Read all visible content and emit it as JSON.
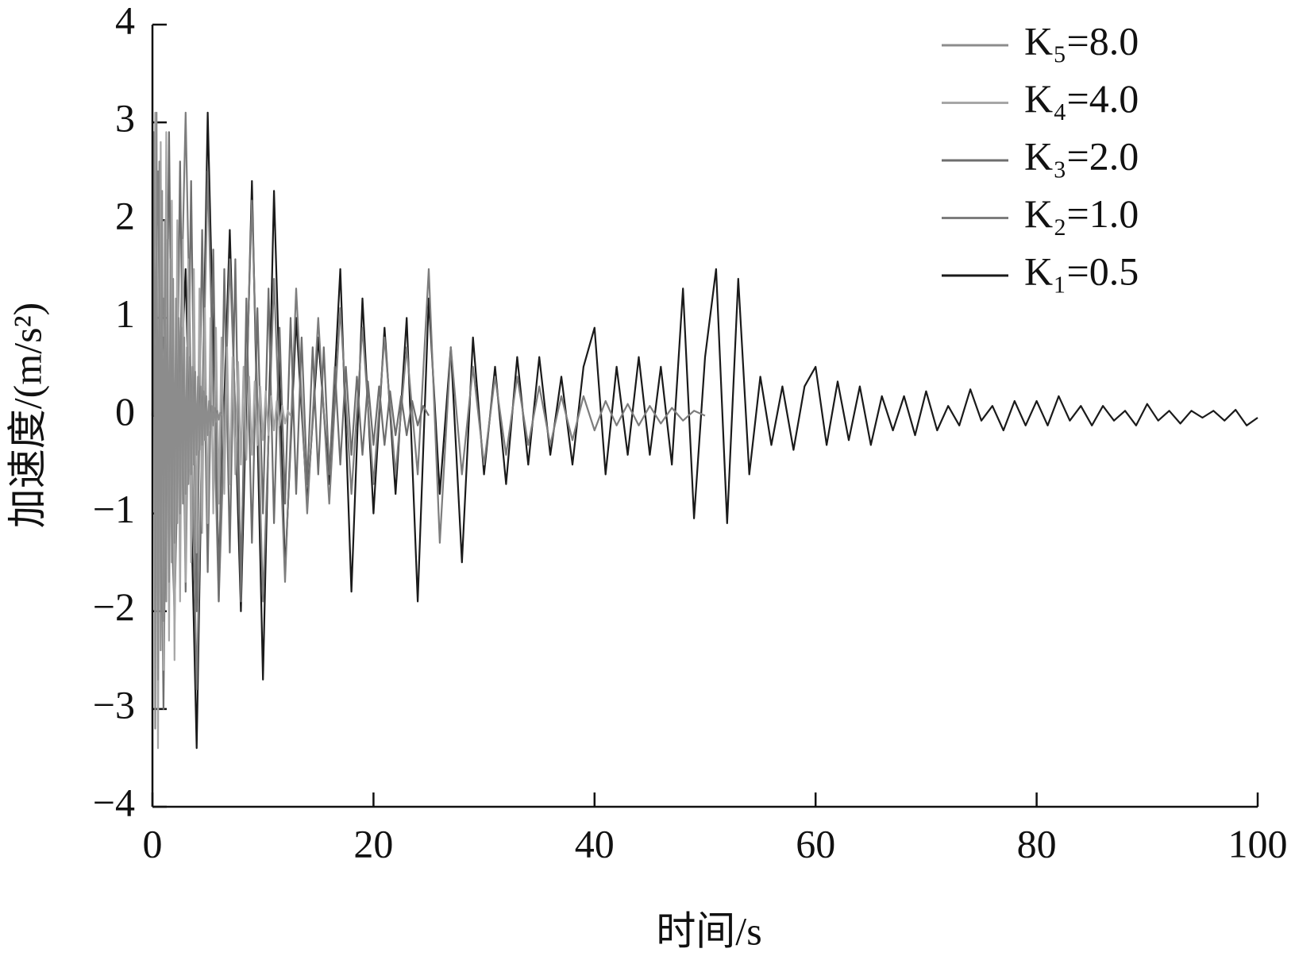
{
  "chart_data": {
    "type": "line",
    "xlabel": "时间/s",
    "ylabel": "加速度/(m/s²)",
    "xlim": [
      0,
      100
    ],
    "xticks": [
      0,
      20,
      40,
      60,
      80,
      100
    ],
    "ylim": [
      -4,
      4
    ],
    "yticks": [
      {
        "value": -4,
        "label": "−4"
      },
      {
        "value": -3,
        "label": "−3"
      },
      {
        "value": -2,
        "label": "−2"
      },
      {
        "value": -1,
        "label": "−1"
      },
      0,
      1,
      2,
      3,
      4
    ],
    "legend": "upper right",
    "series": [
      {
        "name": "K₅=8.0",
        "color": "#8c8c8c",
        "x": [
          0,
          0.125,
          0.25,
          0.375,
          0.5,
          0.625,
          0.75,
          0.875,
          1,
          1.125,
          1.25,
          1.375,
          1.5,
          1.625,
          1.75,
          1.875,
          2,
          2.125,
          2.25,
          2.375,
          2.5,
          2.625,
          2.75,
          2.875,
          3,
          3.125,
          3.25,
          3.375,
          3.5,
          3.625,
          3.75,
          3.875,
          4,
          4.125,
          4.25,
          4.375,
          4.5,
          4.625,
          4.75,
          4.875,
          5,
          5.125,
          5.25,
          5.375,
          5.5,
          5.625,
          5.75,
          5.875,
          6,
          6.125,
          6.25
        ],
        "values": [
          0,
          2.9,
          -3.2,
          3.1,
          -2.7,
          2.6,
          -2.4,
          2.3,
          -2.1,
          2.0,
          -1.9,
          1.8,
          -1.7,
          1.6,
          -1.5,
          1.4,
          -1.3,
          1.2,
          -1.1,
          1.0,
          -1.0,
          0.9,
          -0.9,
          0.8,
          -0.8,
          0.7,
          -0.7,
          0.6,
          -0.6,
          0.5,
          -0.5,
          0.45,
          -0.4,
          0.4,
          -0.35,
          0.3,
          -0.3,
          0.25,
          -0.25,
          0.2,
          -0.2,
          0.15,
          -0.15,
          0.1,
          -0.1,
          0.08,
          -0.06,
          0.05,
          -0.04,
          0.03,
          0
        ]
      },
      {
        "name": "K₄=4.0",
        "color": "#a6a6a6",
        "x": [
          0,
          0.25,
          0.5,
          0.75,
          1,
          1.25,
          1.5,
          1.75,
          2,
          2.25,
          2.5,
          2.75,
          3,
          3.25,
          3.5,
          3.75,
          4,
          4.25,
          4.5,
          4.75,
          5,
          5.25,
          5.5,
          5.75,
          6,
          6.25,
          6.5,
          6.75,
          7,
          7.25,
          7.5,
          7.75,
          8,
          8.25,
          8.5,
          8.75,
          9,
          9.25,
          9.5,
          9.75,
          10,
          10.25,
          10.5,
          10.75,
          11,
          11.25,
          11.5,
          11.75,
          12,
          12.25,
          12.5
        ],
        "values": [
          0,
          3.1,
          -3.4,
          2.8,
          -2.6,
          2.9,
          -2.3,
          2.2,
          -2.5,
          2.0,
          -1.9,
          1.8,
          -1.7,
          1.6,
          -1.5,
          1.5,
          -1.4,
          1.3,
          -1.2,
          1.1,
          -1.1,
          1.0,
          -1.0,
          0.9,
          -0.9,
          0.8,
          -0.8,
          0.7,
          -0.7,
          0.6,
          -0.6,
          0.55,
          -0.5,
          0.5,
          -0.45,
          0.4,
          -0.4,
          0.35,
          -0.3,
          0.3,
          -0.25,
          0.25,
          -0.2,
          0.2,
          -0.15,
          0.15,
          -0.1,
          0.1,
          -0.08,
          0.05,
          0
        ]
      },
      {
        "name": "K₃=2.0",
        "color": "#6e6e6e",
        "x": [
          0,
          0.5,
          1,
          1.5,
          2,
          2.5,
          3,
          3.5,
          4,
          4.5,
          5,
          5.5,
          6,
          6.5,
          7,
          7.5,
          8,
          8.5,
          9,
          9.5,
          10,
          10.5,
          11,
          11.5,
          12,
          12.5,
          13,
          13.5,
          14,
          14.5,
          15,
          15.5,
          16,
          16.5,
          17,
          17.5,
          18,
          18.5,
          19,
          19.5,
          20,
          20.5,
          21,
          21.5,
          22,
          22.5,
          23,
          23.5,
          24,
          24.5,
          25
        ],
        "values": [
          0,
          2.5,
          -3.0,
          2.9,
          -2.2,
          2.6,
          -1.8,
          2.4,
          -2.0,
          1.9,
          -1.6,
          1.7,
          -1.9,
          1.5,
          -1.4,
          1.6,
          -1.9,
          1.2,
          -1.3,
          1.1,
          -1.0,
          1.3,
          -1.1,
          0.9,
          -0.9,
          1.0,
          -0.8,
          0.8,
          -0.7,
          0.7,
          -0.6,
          0.7,
          -0.6,
          0.5,
          -0.5,
          0.5,
          -0.4,
          0.4,
          -0.4,
          0.35,
          -0.3,
          0.3,
          -0.3,
          0.25,
          -0.2,
          0.2,
          -0.2,
          0.15,
          -0.1,
          0.1,
          0
        ]
      },
      {
        "name": "K₂=1.0",
        "color": "#7d7d7d",
        "x": [
          0,
          1,
          2,
          3,
          4,
          5,
          6,
          7,
          8,
          9,
          10,
          11,
          12,
          13,
          14,
          15,
          16,
          17,
          18,
          19,
          20,
          21,
          22,
          23,
          24,
          25,
          26,
          27,
          28,
          29,
          30,
          31,
          32,
          33,
          34,
          35,
          36,
          37,
          38,
          39,
          40,
          41,
          42,
          43,
          44,
          45,
          46,
          47,
          48,
          49,
          50
        ],
        "values": [
          0,
          1.2,
          -2.0,
          3.1,
          -2.8,
          2.5,
          -1.9,
          1.6,
          -1.5,
          2.2,
          -1.9,
          1.4,
          -1.7,
          1.3,
          -1.0,
          1.0,
          -0.9,
          1.1,
          -0.8,
          0.9,
          -0.7,
          0.8,
          -0.6,
          0.7,
          -0.6,
          1.5,
          -1.3,
          0.7,
          -0.6,
          0.5,
          -0.5,
          0.4,
          -0.4,
          0.4,
          -0.3,
          0.3,
          -0.3,
          0.2,
          -0.25,
          0.2,
          -0.15,
          0.15,
          -0.1,
          0.12,
          -0.1,
          0.1,
          -0.08,
          0.08,
          -0.05,
          0.05,
          0
        ]
      },
      {
        "name": "K₁=0.5",
        "color": "#1a1a1a",
        "x": [
          0,
          1,
          2,
          3,
          4,
          5,
          6,
          7,
          8,
          9,
          10,
          11,
          12,
          13,
          14,
          15,
          16,
          17,
          18,
          19,
          20,
          21,
          22,
          23,
          24,
          25,
          26,
          27,
          28,
          29,
          30,
          31,
          32,
          33,
          34,
          35,
          36,
          37,
          38,
          39,
          40,
          41,
          42,
          43,
          44,
          45,
          46,
          47,
          48,
          49,
          50,
          51,
          52,
          53,
          54,
          55,
          56,
          57,
          58,
          59,
          60,
          61,
          62,
          63,
          64,
          65,
          66,
          67,
          68,
          69,
          70,
          71,
          72,
          73,
          74,
          75,
          76,
          77,
          78,
          79,
          80,
          81,
          82,
          83,
          84,
          85,
          86,
          87,
          88,
          89,
          90,
          91,
          92,
          93,
          94,
          95,
          96,
          97,
          98,
          99,
          100
        ],
        "values": [
          0,
          0.8,
          -1.2,
          1.5,
          -3.4,
          3.1,
          -1.6,
          1.9,
          -2.0,
          2.4,
          -2.7,
          2.3,
          -1.6,
          1.0,
          -0.9,
          0.8,
          -0.7,
          1.5,
          -1.8,
          1.2,
          -1.0,
          0.9,
          -0.8,
          1.0,
          -1.9,
          1.2,
          -0.8,
          0.7,
          -1.5,
          0.8,
          -0.6,
          0.5,
          -0.7,
          0.6,
          -0.5,
          0.6,
          -0.4,
          0.4,
          -0.5,
          0.5,
          0.9,
          -0.6,
          0.5,
          -0.4,
          0.6,
          -0.4,
          0.5,
          -0.5,
          1.3,
          -1.05,
          0.6,
          1.5,
          -1.1,
          1.4,
          -0.6,
          0.4,
          -0.3,
          0.3,
          -0.35,
          0.3,
          0.5,
          -0.3,
          0.35,
          -0.25,
          0.3,
          -0.3,
          0.2,
          -0.15,
          0.2,
          -0.2,
          0.25,
          -0.15,
          0.1,
          -0.1,
          0.27,
          -0.05,
          0.1,
          -0.15,
          0.15,
          -0.1,
          0.15,
          -0.1,
          0.2,
          -0.05,
          0.1,
          -0.1,
          0.1,
          -0.05,
          0.05,
          -0.1,
          0.12,
          -0.05,
          0.05,
          -0.08,
          0.05,
          -0.02,
          0.05,
          -0.05,
          0.06,
          -0.1,
          -0.02
        ]
      }
    ]
  }
}
